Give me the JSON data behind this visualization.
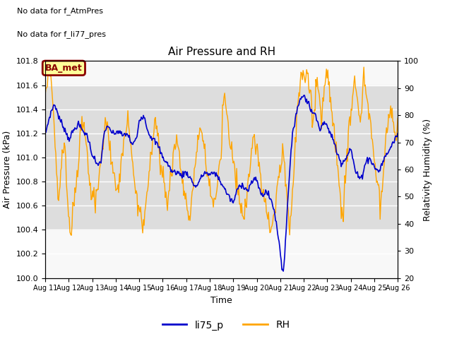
{
  "title": "Air Pressure and RH",
  "xlabel": "Time",
  "ylabel_left": "Air Pressure (kPa)",
  "ylabel_right": "Relativity Humidity (%)",
  "no_data_text": [
    "No data for f_AtmPres",
    "No data for f_li77_pres"
  ],
  "ba_met_label": "BA_met",
  "ylim_left": [
    100.0,
    101.8
  ],
  "ylim_right": [
    20,
    100
  ],
  "x_start_day": 11,
  "x_end_day": 26,
  "x_ticks": [
    11,
    12,
    13,
    14,
    15,
    16,
    17,
    18,
    19,
    20,
    21,
    22,
    23,
    24,
    25,
    26
  ],
  "x_tick_labels": [
    "Aug 11",
    "Aug 12",
    "Aug 13",
    "Aug 14",
    "Aug 15",
    "Aug 16",
    "Aug 17",
    "Aug 18",
    "Aug 19",
    "Aug 20",
    "Aug 21",
    "Aug 22",
    "Aug 23",
    "Aug 24",
    "Aug 25",
    "Aug 26"
  ],
  "line_blue_color": "#0000cc",
  "line_orange_color": "#ffa500",
  "legend_labels": [
    "li75_p",
    "RH"
  ],
  "gray_band_ymin": 100.4,
  "gray_band_ymax": 101.6,
  "gray_band_color": "#dddddd",
  "plot_bg_color": "#f8f8f8",
  "grid_color": "#ffffff",
  "ba_met_bg": "#ffff99",
  "ba_met_border": "#8b0000",
  "ba_met_text_color": "#8b0000",
  "yticks_left": [
    100.0,
    100.2,
    100.4,
    100.6,
    100.8,
    101.0,
    101.2,
    101.4,
    101.6,
    101.8
  ],
  "yticks_right": [
    20,
    30,
    40,
    50,
    60,
    70,
    80,
    90,
    100
  ]
}
